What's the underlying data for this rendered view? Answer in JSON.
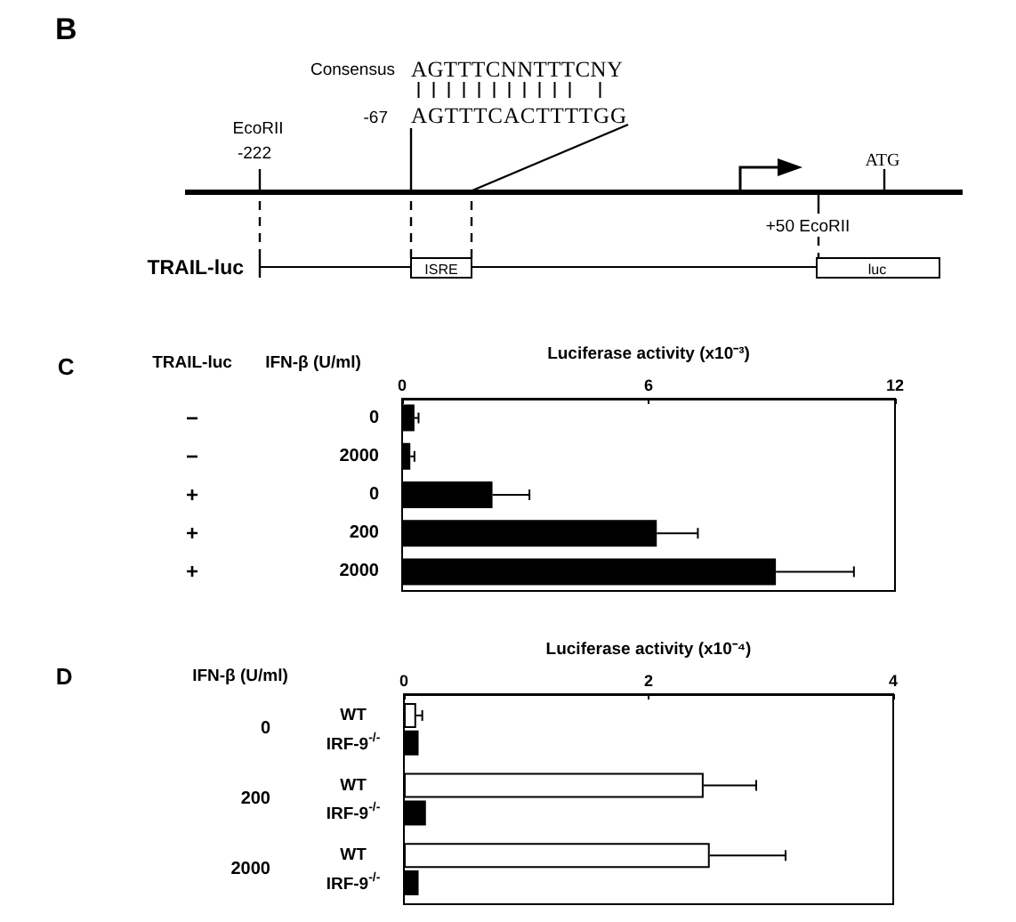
{
  "chart_data": [
    {
      "type": "other",
      "annotations": [
        "B",
        "Consensus",
        "AGTTTCNNTTTCNY",
        "-67",
        "AGTTTCACTTTTGG",
        "EcoRII",
        "-222",
        "ATG",
        "+50 EcoRII",
        "TRAIL-luc",
        "ISRE",
        "luc"
      ]
    },
    {
      "type": "bar",
      "orientation": "horizontal",
      "annotations": [
        "C"
      ],
      "xlabel": "Luciferase activity (x10⁻³)",
      "ylabel": "IFN-β (U/ml)",
      "y2label": "TRAIL-luc",
      "categories": [
        "0",
        "2000",
        "0",
        "200",
        "2000"
      ],
      "y2_categories": [
        "−",
        "−",
        "+",
        "+",
        "+"
      ],
      "values": [
        0.3,
        0.2,
        2.2,
        6.2,
        9.1
      ],
      "color": "#000000",
      "errors": [
        [
          0.3,
          0.4
        ],
        [
          0.2,
          0.3
        ],
        [
          2.2,
          3.1
        ],
        [
          6.2,
          7.2
        ],
        [
          9.1,
          11
        ]
      ],
      "xlim": [
        0,
        12
      ],
      "xticks": [
        0,
        6,
        12
      ]
    },
    {
      "type": "bar",
      "orientation": "horizontal",
      "annotations": [
        "D"
      ],
      "xlabel": "Luciferase activity (x10⁻⁴)",
      "ylabel": "IFN-β (U/ml)",
      "categories": [
        "0",
        "200",
        "2000"
      ],
      "series": [
        {
          "name": "WT",
          "color": "#ffffff",
          "values": [
            0.1,
            2.45,
            2.5
          ],
          "errors": [
            [
              0.1,
              0.15
            ],
            [
              2.45,
              2.88
            ],
            [
              2.5,
              3.12
            ]
          ]
        },
        {
          "name": "IRF-9$^{-/-}$",
          "color": "#000000",
          "values": [
            0.12,
            0.18,
            0.12
          ]
        }
      ],
      "xlim": [
        0,
        4
      ],
      "xticks": [
        0,
        2,
        4
      ]
    }
  ]
}
